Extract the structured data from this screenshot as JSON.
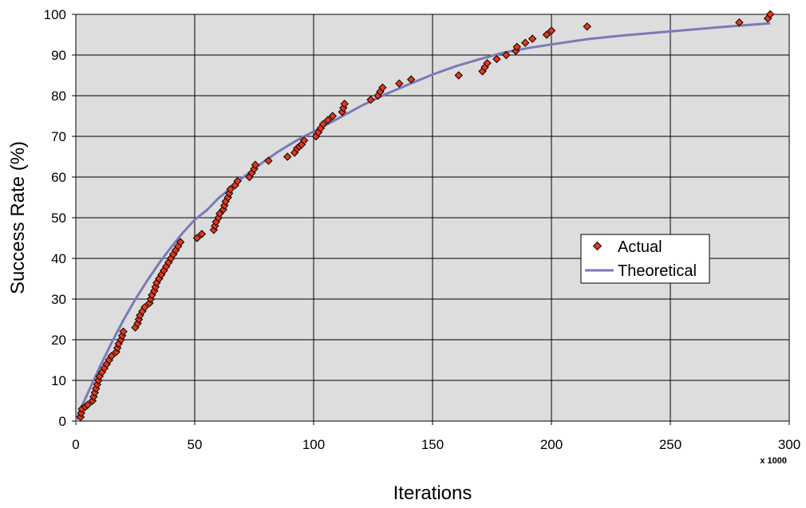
{
  "chart_data": {
    "type": "scatter",
    "title": "",
    "xlabel": "Iterations",
    "ylabel": "Success Rate (%)",
    "x_multiplier_label": "x 1000",
    "xlim": [
      0,
      300
    ],
    "ylim": [
      0,
      100
    ],
    "x_ticks": [
      0,
      50,
      100,
      150,
      200,
      250,
      300
    ],
    "y_ticks": [
      0,
      10,
      20,
      30,
      40,
      50,
      60,
      70,
      80,
      90,
      100
    ],
    "grid": true,
    "plot_background": "#dddddd",
    "legend_position": "right-middle",
    "series": [
      {
        "name": "Actual",
        "kind": "scatter",
        "marker": "diamond",
        "color": "#e8361a",
        "points": [
          [
            2,
            1
          ],
          [
            2.3,
            2
          ],
          [
            2.6,
            3
          ],
          [
            4,
            3.5
          ],
          [
            5,
            4
          ],
          [
            7,
            5
          ],
          [
            7.5,
            6
          ],
          [
            8,
            7
          ],
          [
            8.5,
            8
          ],
          [
            9,
            9
          ],
          [
            9.5,
            10
          ],
          [
            10,
            11
          ],
          [
            11,
            12
          ],
          [
            12,
            13
          ],
          [
            13,
            14
          ],
          [
            14,
            15
          ],
          [
            15,
            16
          ],
          [
            17,
            17
          ],
          [
            17.5,
            18
          ],
          [
            18,
            19
          ],
          [
            19,
            20
          ],
          [
            19.5,
            21
          ],
          [
            20,
            22
          ],
          [
            25,
            23
          ],
          [
            26,
            24
          ],
          [
            26.5,
            25
          ],
          [
            27,
            26
          ],
          [
            28,
            27
          ],
          [
            29,
            28
          ],
          [
            31,
            29
          ],
          [
            31.5,
            30
          ],
          [
            32,
            31
          ],
          [
            33,
            32
          ],
          [
            33.5,
            33
          ],
          [
            34,
            34
          ],
          [
            35,
            35
          ],
          [
            36,
            36
          ],
          [
            37,
            37
          ],
          [
            38,
            38
          ],
          [
            39,
            39
          ],
          [
            40,
            40
          ],
          [
            41,
            41
          ],
          [
            42,
            42
          ],
          [
            43,
            43
          ],
          [
            44,
            44
          ],
          [
            51,
            45
          ],
          [
            53,
            46
          ],
          [
            58,
            47
          ],
          [
            58.5,
            48
          ],
          [
            59,
            49
          ],
          [
            60,
            50
          ],
          [
            60.5,
            51
          ],
          [
            62,
            52
          ],
          [
            62.5,
            53
          ],
          [
            63,
            54
          ],
          [
            64,
            55
          ],
          [
            64.5,
            56
          ],
          [
            65,
            57
          ],
          [
            67,
            58
          ],
          [
            68,
            59
          ],
          [
            73,
            60
          ],
          [
            74,
            61
          ],
          [
            75,
            62
          ],
          [
            75.5,
            63
          ],
          [
            81,
            64
          ],
          [
            89,
            65
          ],
          [
            92,
            66
          ],
          [
            93,
            67
          ],
          [
            94,
            67.5
          ],
          [
            95,
            68
          ],
          [
            96,
            69
          ],
          [
            101,
            70
          ],
          [
            102,
            71
          ],
          [
            103,
            72
          ],
          [
            104,
            73
          ],
          [
            106,
            74
          ],
          [
            108,
            75
          ],
          [
            112,
            76
          ],
          [
            112.5,
            77
          ],
          [
            113,
            78
          ],
          [
            124,
            79
          ],
          [
            127,
            80
          ],
          [
            128,
            81
          ],
          [
            129,
            82
          ],
          [
            136,
            83
          ],
          [
            141,
            84
          ],
          [
            161,
            85
          ],
          [
            171,
            86
          ],
          [
            172,
            87
          ],
          [
            173,
            88
          ],
          [
            177,
            89
          ],
          [
            181,
            90
          ],
          [
            185,
            91
          ],
          [
            185.5,
            92
          ],
          [
            189,
            93
          ],
          [
            192,
            94
          ],
          [
            198,
            95
          ],
          [
            200,
            96
          ],
          [
            215,
            97
          ],
          [
            279,
            98
          ],
          [
            291,
            99
          ],
          [
            292,
            100
          ]
        ]
      },
      {
        "name": "Theoretical",
        "kind": "line",
        "color": "#7a7ab8",
        "points": [
          [
            0,
            0
          ],
          [
            2,
            3
          ],
          [
            5,
            6.8
          ],
          [
            10,
            13.2
          ],
          [
            15,
            19.2
          ],
          [
            20,
            24.8
          ],
          [
            25,
            29.9
          ],
          [
            30,
            34.5
          ],
          [
            35,
            38.8
          ],
          [
            40,
            42.7
          ],
          [
            45,
            46.3
          ],
          [
            50,
            49.5
          ],
          [
            55,
            51.8
          ],
          [
            60,
            54.8
          ],
          [
            65,
            57.2
          ],
          [
            70,
            59.8
          ],
          [
            75,
            62
          ],
          [
            80,
            64.2
          ],
          [
            85,
            66.2
          ],
          [
            90,
            68
          ],
          [
            95,
            69.7
          ],
          [
            100,
            71.2
          ],
          [
            110,
            74.3
          ],
          [
            120,
            77.5
          ],
          [
            130,
            80.3
          ],
          [
            140,
            82.8
          ],
          [
            150,
            85.2
          ],
          [
            160,
            87.3
          ],
          [
            170,
            89
          ],
          [
            180,
            90.6
          ],
          [
            190,
            91.7
          ],
          [
            200,
            92.6
          ],
          [
            215,
            93.9
          ],
          [
            230,
            94.8
          ],
          [
            250,
            95.8
          ],
          [
            270,
            96.8
          ],
          [
            292,
            97.8
          ]
        ]
      }
    ]
  }
}
